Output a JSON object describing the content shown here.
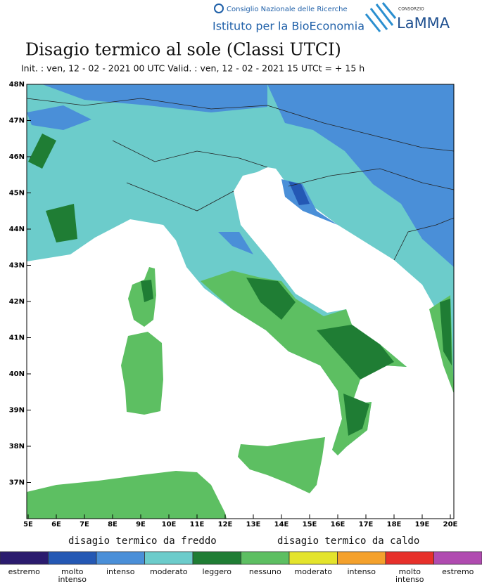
{
  "header": {
    "institution": "Consiglio Nazionale delle Ricerche",
    "institute": "Istituto per la BioEconomia",
    "consortium": "CONSORZIO",
    "brand": "LaMMA"
  },
  "title": "Disagio termico al sole (Classi UTCI)",
  "subtitle": "Init. : ven, 12 - 02 - 2021 00 UTC Valid. : ven, 12 - 02 - 2021 15 UTCt = + 15 h",
  "map": {
    "lat_labels": [
      "48N",
      "47N",
      "46N",
      "45N",
      "44N",
      "43N",
      "42N",
      "41N",
      "40N",
      "39N",
      "38N",
      "37N"
    ],
    "lon_labels": [
      "5E",
      "6E",
      "7E",
      "8E",
      "9E",
      "10E",
      "11E",
      "12E",
      "13E",
      "14E",
      "15E",
      "16E",
      "17E",
      "18E",
      "19E",
      "20E"
    ]
  },
  "legend": {
    "cold_label": "disagio termico da freddo",
    "hot_label": "disagio termico da caldo",
    "classes": [
      {
        "label": "estremo",
        "color": "#2b1b6e"
      },
      {
        "label": "molto intenso",
        "color": "#2458b4"
      },
      {
        "label": "intenso",
        "color": "#4a8fd8"
      },
      {
        "label": "moderato",
        "color": "#6ccccb"
      },
      {
        "label": "leggero",
        "color": "#1f7d34"
      },
      {
        "label": "nessuno",
        "color": "#5dbf62"
      },
      {
        "label": "moderato",
        "color": "#e4e42c"
      },
      {
        "label": "intenso",
        "color": "#f4a12c"
      },
      {
        "label": "molto intenso",
        "color": "#e7302a"
      },
      {
        "label": "estremo",
        "color": "#b04bb0"
      }
    ]
  }
}
